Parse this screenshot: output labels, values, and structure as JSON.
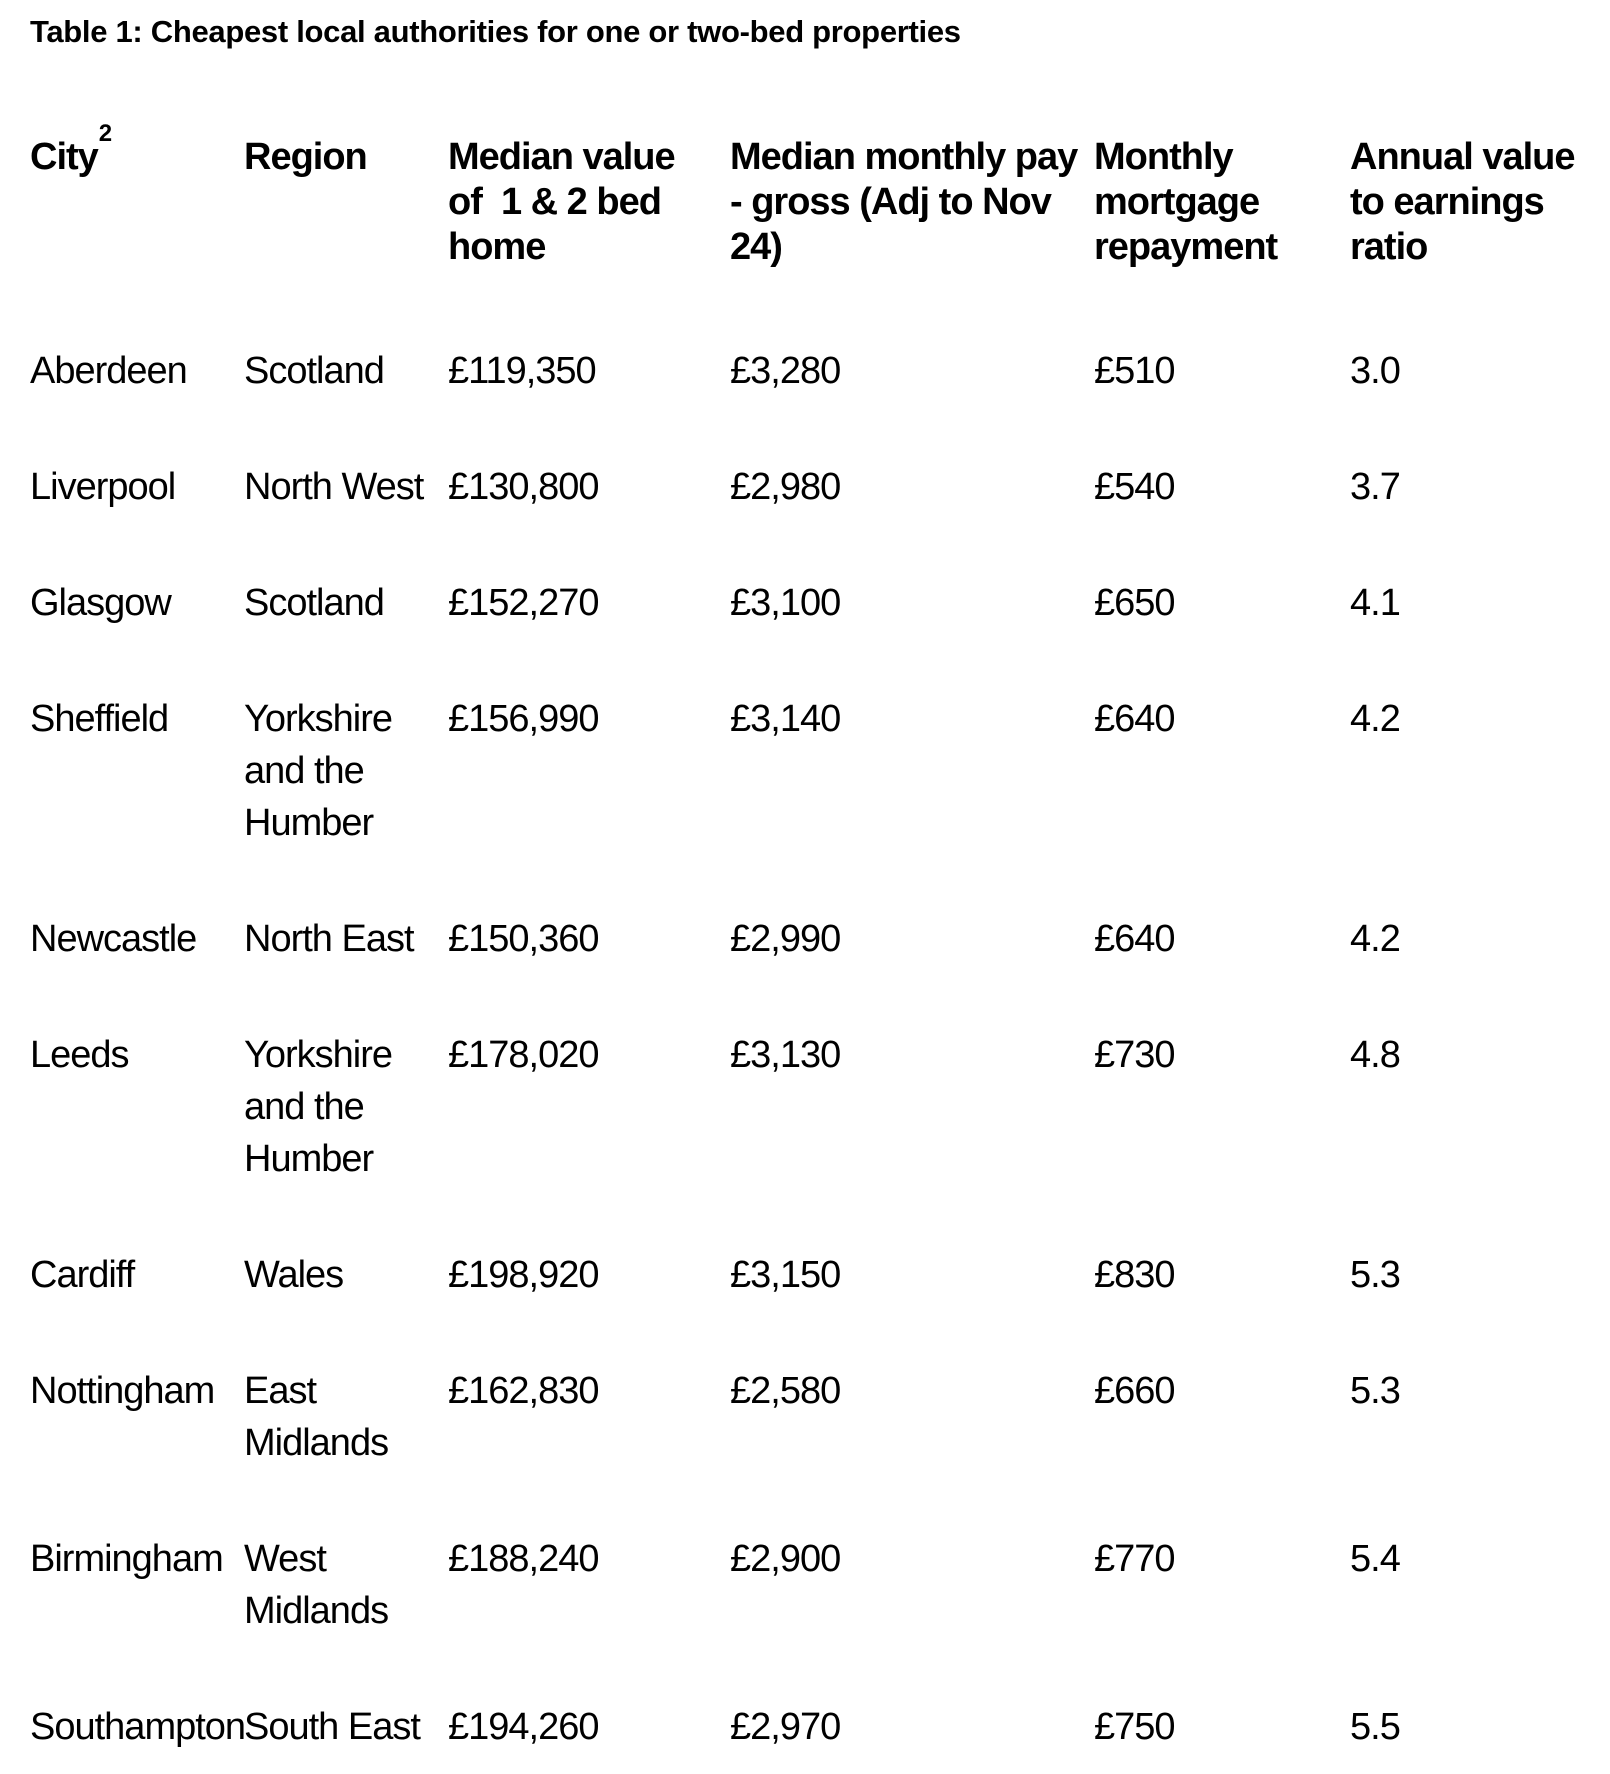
{
  "page": {
    "background_color": "#ffffff",
    "text_color": "#000000"
  },
  "title": "Table 1: Cheapest local authorities for one or two-bed properties",
  "table": {
    "headers": [
      {
        "label": "City",
        "superscript": "2"
      },
      {
        "label": "Region"
      },
      {
        "label": "Median value\nof  1 & 2 bed\nhome"
      },
      {
        "label": "Median monthly pay\n- gross (Adj to Nov\n24)"
      },
      {
        "label": "Monthly\nmortgage\nrepayment"
      },
      {
        "label": "Annual value\nto earnings\nratio"
      }
    ],
    "rows": [
      {
        "city": "Aberdeen",
        "region": "Scotland",
        "median_value": "£119,350",
        "median_monthly_pay": "£3,280",
        "monthly_mortgage_repayment": "£510",
        "annual_value_to_earnings_ratio": "3.0"
      },
      {
        "city": "Liverpool",
        "region": "North West",
        "median_value": "£130,800",
        "median_monthly_pay": "£2,980",
        "monthly_mortgage_repayment": "£540",
        "annual_value_to_earnings_ratio": "3.7"
      },
      {
        "city": "Glasgow",
        "region": "Scotland",
        "median_value": "£152,270",
        "median_monthly_pay": "£3,100",
        "monthly_mortgage_repayment": "£650",
        "annual_value_to_earnings_ratio": "4.1"
      },
      {
        "city": "Sheffield",
        "region": "Yorkshire and the Humber",
        "median_value": "£156,990",
        "median_monthly_pay": "£3,140",
        "monthly_mortgage_repayment": "£640",
        "annual_value_to_earnings_ratio": "4.2"
      },
      {
        "city": "Newcastle",
        "region": "North East",
        "median_value": "£150,360",
        "median_monthly_pay": "£2,990",
        "monthly_mortgage_repayment": "£640",
        "annual_value_to_earnings_ratio": "4.2"
      },
      {
        "city": "Leeds",
        "region": "Yorkshire and the Humber",
        "median_value": "£178,020",
        "median_monthly_pay": "£3,130",
        "monthly_mortgage_repayment": "£730",
        "annual_value_to_earnings_ratio": "4.8"
      },
      {
        "city": "Cardiff",
        "region": "Wales",
        "median_value": "£198,920",
        "median_monthly_pay": "£3,150",
        "monthly_mortgage_repayment": "£830",
        "annual_value_to_earnings_ratio": "5.3"
      },
      {
        "city": "Nottingham",
        "region": "East Midlands",
        "median_value": "£162,830",
        "median_monthly_pay": "£2,580",
        "monthly_mortgage_repayment": "£660",
        "annual_value_to_earnings_ratio": "5.3"
      },
      {
        "city": "Birmingham",
        "region": "West Midlands",
        "median_value": "£188,240",
        "median_monthly_pay": "£2,900",
        "monthly_mortgage_repayment": "£770",
        "annual_value_to_earnings_ratio": "5.4"
      },
      {
        "city": "Southampton",
        "region": "South East",
        "median_value": "£194,260",
        "median_monthly_pay": "£2,970",
        "monthly_mortgage_repayment": "£750",
        "annual_value_to_earnings_ratio": "5.5"
      }
    ]
  }
}
